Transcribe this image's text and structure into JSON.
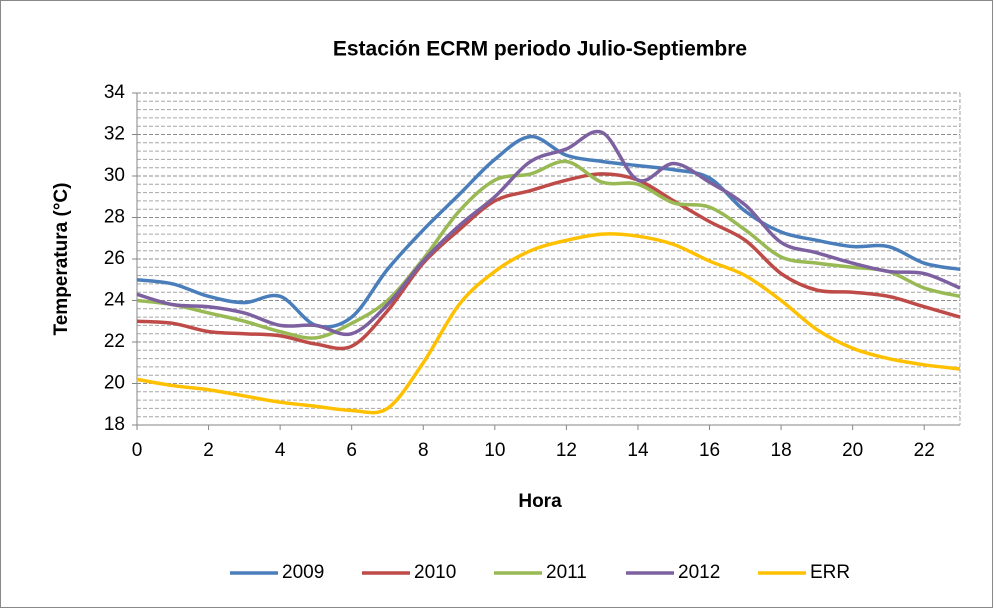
{
  "chart_data": {
    "type": "line",
    "title": "Estación ECRM periodo Julio-Septiembre",
    "x_label": "Hora",
    "y_label": "Temperatura (°C)",
    "x": [
      0,
      1,
      2,
      3,
      4,
      5,
      6,
      7,
      8,
      9,
      10,
      11,
      12,
      13,
      14,
      15,
      16,
      17,
      18,
      19,
      20,
      21,
      22,
      23
    ],
    "xlim": [
      0,
      23
    ],
    "xticks": [
      0,
      2,
      4,
      6,
      8,
      10,
      12,
      14,
      16,
      18,
      20,
      22
    ],
    "ylim": [
      18,
      34
    ],
    "yticks": [
      18,
      20,
      22,
      24,
      26,
      28,
      30,
      32,
      34
    ],
    "grid": true,
    "legend": "bottom",
    "series": [
      {
        "name": "2009",
        "color": "#4a7ebb",
        "values": [
          25.0,
          24.8,
          24.2,
          23.9,
          24.2,
          22.8,
          23.2,
          25.5,
          27.4,
          29.1,
          30.8,
          31.9,
          31.0,
          30.7,
          30.5,
          30.3,
          29.9,
          28.3,
          27.3,
          26.9,
          26.6,
          26.6,
          25.8,
          25.5
        ]
      },
      {
        "name": "2010",
        "color": "#be4b48",
        "values": [
          23.0,
          22.9,
          22.5,
          22.4,
          22.3,
          21.9,
          21.8,
          23.5,
          25.8,
          27.4,
          28.8,
          29.3,
          29.8,
          30.1,
          29.8,
          28.8,
          27.8,
          26.9,
          25.3,
          24.5,
          24.4,
          24.2,
          23.7,
          23.2
        ]
      },
      {
        "name": "2011",
        "color": "#98b954",
        "values": [
          24.0,
          23.8,
          23.4,
          23.0,
          22.5,
          22.2,
          22.9,
          24.0,
          26.0,
          28.3,
          29.8,
          30.1,
          30.7,
          29.7,
          29.6,
          28.7,
          28.5,
          27.4,
          26.1,
          25.8,
          25.6,
          25.4,
          24.6,
          24.2
        ]
      },
      {
        "name": "2012",
        "color": "#7d60a0",
        "values": [
          24.3,
          23.8,
          23.7,
          23.4,
          22.8,
          22.8,
          22.4,
          23.8,
          25.9,
          27.6,
          29.0,
          30.7,
          31.3,
          32.1,
          29.8,
          30.6,
          29.7,
          28.6,
          26.8,
          26.3,
          25.8,
          25.4,
          25.3,
          24.6
        ]
      },
      {
        "name": "ERR",
        "color": "#ffc000",
        "values": [
          20.2,
          19.9,
          19.7,
          19.4,
          19.1,
          18.9,
          18.7,
          18.8,
          21.0,
          23.8,
          25.4,
          26.4,
          26.9,
          27.2,
          27.1,
          26.7,
          25.9,
          25.2,
          24.0,
          22.6,
          21.7,
          21.2,
          20.9,
          20.7
        ]
      }
    ]
  }
}
